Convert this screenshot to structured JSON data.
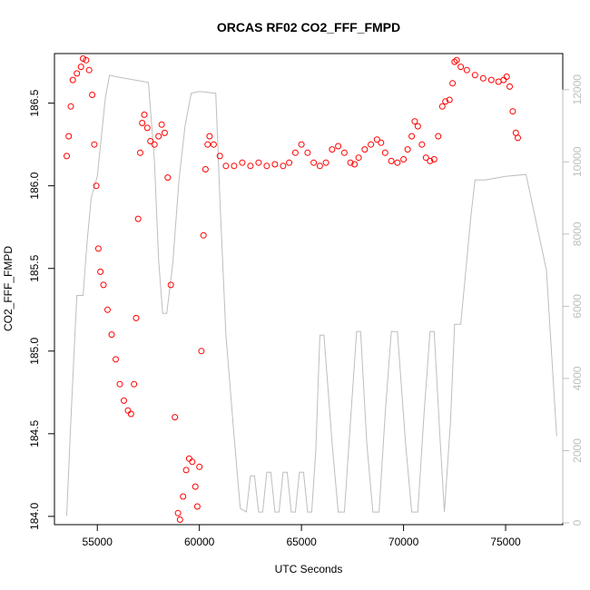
{
  "chart_data": {
    "type": "scatter",
    "title": "ORCAS RF02 CO2_FFF_FMPD",
    "xlabel": "UTC Seconds",
    "ylabel": "CO2_FFF_FMPD",
    "xlim": [
      52900,
      77800
    ],
    "ylim": [
      183.95,
      186.8
    ],
    "x_ticks": [
      55000,
      60000,
      65000,
      70000,
      75000
    ],
    "y_ticks": [
      184.0,
      184.5,
      185.0,
      185.5,
      186.0,
      186.5
    ],
    "y2lim": [
      -50,
      13000
    ],
    "y2_ticks": [
      0,
      2000,
      4000,
      6000,
      8000,
      10000,
      12000
    ],
    "colors": {
      "primary": "#ff0000",
      "secondary": "#bebebe",
      "axis": "#000000"
    },
    "series": [
      {
        "type": "scatter",
        "axis": "left",
        "color": "#ff0000",
        "points": [
          [
            53500,
            186.18
          ],
          [
            53600,
            186.3
          ],
          [
            53700,
            186.48
          ],
          [
            53800,
            186.64
          ],
          [
            54000,
            186.68
          ],
          [
            54200,
            186.72
          ],
          [
            54300,
            186.77
          ],
          [
            54450,
            186.76
          ],
          [
            54600,
            186.7
          ],
          [
            54750,
            186.55
          ],
          [
            54850,
            186.25
          ],
          [
            54950,
            186.0
          ],
          [
            55050,
            185.62
          ],
          [
            55150,
            185.48
          ],
          [
            55300,
            185.4
          ],
          [
            55500,
            185.25
          ],
          [
            55700,
            185.1
          ],
          [
            55900,
            184.95
          ],
          [
            56100,
            184.8
          ],
          [
            56300,
            184.7
          ],
          [
            56500,
            184.64
          ],
          [
            56650,
            184.62
          ],
          [
            56800,
            184.8
          ],
          [
            56900,
            185.2
          ],
          [
            57000,
            185.8
          ],
          [
            57100,
            186.2
          ],
          [
            57200,
            186.38
          ],
          [
            57300,
            186.43
          ],
          [
            57450,
            186.35
          ],
          [
            57600,
            186.27
          ],
          [
            57800,
            186.25
          ],
          [
            58000,
            186.3
          ],
          [
            58150,
            186.37
          ],
          [
            58300,
            186.32
          ],
          [
            58450,
            186.05
          ],
          [
            58600,
            185.4
          ],
          [
            58800,
            184.6
          ],
          [
            58950,
            184.02
          ],
          [
            59050,
            183.98
          ],
          [
            59200,
            184.12
          ],
          [
            59350,
            184.28
          ],
          [
            59500,
            184.35
          ],
          [
            59650,
            184.33
          ],
          [
            59800,
            184.18
          ],
          [
            59900,
            184.06
          ],
          [
            60000,
            184.3
          ],
          [
            60100,
            185.0
          ],
          [
            60200,
            185.7
          ],
          [
            60300,
            186.1
          ],
          [
            60400,
            186.25
          ],
          [
            60500,
            186.3
          ],
          [
            60700,
            186.25
          ],
          [
            61000,
            186.18
          ],
          [
            61300,
            186.12
          ],
          [
            61700,
            186.12
          ],
          [
            62100,
            186.14
          ],
          [
            62500,
            186.12
          ],
          [
            62900,
            186.14
          ],
          [
            63300,
            186.12
          ],
          [
            63700,
            186.13
          ],
          [
            64100,
            186.12
          ],
          [
            64400,
            186.14
          ],
          [
            64700,
            186.2
          ],
          [
            65000,
            186.25
          ],
          [
            65300,
            186.2
          ],
          [
            65600,
            186.14
          ],
          [
            65900,
            186.12
          ],
          [
            66200,
            186.14
          ],
          [
            66500,
            186.22
          ],
          [
            66800,
            186.24
          ],
          [
            67100,
            186.2
          ],
          [
            67400,
            186.14
          ],
          [
            67600,
            186.13
          ],
          [
            67800,
            186.17
          ],
          [
            68100,
            186.22
          ],
          [
            68400,
            186.25
          ],
          [
            68700,
            186.28
          ],
          [
            68900,
            186.26
          ],
          [
            69100,
            186.2
          ],
          [
            69400,
            186.15
          ],
          [
            69700,
            186.14
          ],
          [
            70000,
            186.16
          ],
          [
            70200,
            186.22
          ],
          [
            70400,
            186.3
          ],
          [
            70550,
            186.39
          ],
          [
            70700,
            186.36
          ],
          [
            70900,
            186.25
          ],
          [
            71100,
            186.17
          ],
          [
            71300,
            186.15
          ],
          [
            71500,
            186.16
          ],
          [
            71700,
            186.3
          ],
          [
            71900,
            186.48
          ],
          [
            72050,
            186.51
          ],
          [
            72250,
            186.52
          ],
          [
            72400,
            186.62
          ],
          [
            72500,
            186.75
          ],
          [
            72600,
            186.76
          ],
          [
            72800,
            186.72
          ],
          [
            73100,
            186.7
          ],
          [
            73500,
            186.67
          ],
          [
            73900,
            186.65
          ],
          [
            74300,
            186.64
          ],
          [
            74650,
            186.63
          ],
          [
            74900,
            186.64
          ],
          [
            75050,
            186.66
          ],
          [
            75200,
            186.6
          ],
          [
            75350,
            186.45
          ],
          [
            75500,
            186.32
          ],
          [
            75600,
            186.29
          ]
        ]
      },
      {
        "type": "line",
        "axis": "right",
        "color": "#bebebe",
        "points": [
          [
            53500,
            200
          ],
          [
            53700,
            2800
          ],
          [
            53900,
            5200
          ],
          [
            54000,
            6300
          ],
          [
            54300,
            6300
          ],
          [
            54500,
            7800
          ],
          [
            54700,
            9000
          ],
          [
            55000,
            9600
          ],
          [
            55400,
            11800
          ],
          [
            55600,
            12400
          ],
          [
            56000,
            12350
          ],
          [
            57500,
            12200
          ],
          [
            57800,
            10000
          ],
          [
            58000,
            7300
          ],
          [
            58200,
            5800
          ],
          [
            58400,
            5800
          ],
          [
            58700,
            7200
          ],
          [
            59000,
            9500
          ],
          [
            59300,
            11000
          ],
          [
            59600,
            11900
          ],
          [
            60000,
            11950
          ],
          [
            60800,
            11900
          ],
          [
            61000,
            9000
          ],
          [
            61300,
            5200
          ],
          [
            61700,
            2400
          ],
          [
            62000,
            400
          ],
          [
            62300,
            300
          ],
          [
            62500,
            1300
          ],
          [
            62700,
            1300
          ],
          [
            62900,
            300
          ],
          [
            63100,
            300
          ],
          [
            63300,
            1400
          ],
          [
            63500,
            1400
          ],
          [
            63700,
            300
          ],
          [
            63900,
            300
          ],
          [
            64100,
            1400
          ],
          [
            64300,
            1400
          ],
          [
            64500,
            300
          ],
          [
            64700,
            300
          ],
          [
            64900,
            1400
          ],
          [
            65100,
            1400
          ],
          [
            65300,
            300
          ],
          [
            65500,
            300
          ],
          [
            65700,
            2000
          ],
          [
            65900,
            5200
          ],
          [
            66100,
            5200
          ],
          [
            66500,
            2200
          ],
          [
            66800,
            300
          ],
          [
            67100,
            300
          ],
          [
            67400,
            2800
          ],
          [
            67700,
            5300
          ],
          [
            67900,
            5300
          ],
          [
            68200,
            2200
          ],
          [
            68500,
            300
          ],
          [
            68800,
            300
          ],
          [
            69100,
            3000
          ],
          [
            69400,
            5300
          ],
          [
            69700,
            5300
          ],
          [
            70100,
            2200
          ],
          [
            70400,
            300
          ],
          [
            70700,
            300
          ],
          [
            71000,
            3000
          ],
          [
            71300,
            5300
          ],
          [
            71500,
            5300
          ],
          [
            71800,
            2200
          ],
          [
            72000,
            300
          ],
          [
            72300,
            2800
          ],
          [
            72500,
            5500
          ],
          [
            72800,
            5500
          ],
          [
            73300,
            8500
          ],
          [
            73500,
            9500
          ],
          [
            74000,
            9500
          ],
          [
            75000,
            9600
          ],
          [
            76000,
            9650
          ],
          [
            77000,
            7000
          ],
          [
            77500,
            2400
          ]
        ]
      }
    ]
  }
}
